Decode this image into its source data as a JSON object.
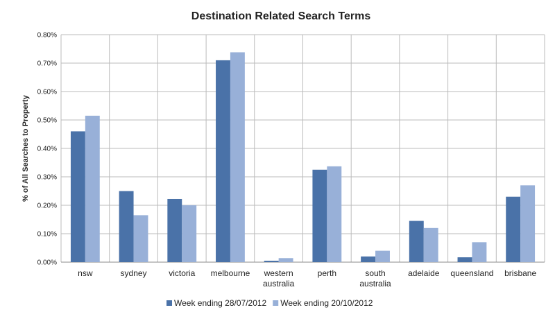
{
  "chart_data": {
    "type": "bar",
    "title": "Destination Related Search Terms",
    "y_label": "% of All Searches to Property",
    "categories": [
      "nsw",
      "sydney",
      "victoria",
      "melbourne",
      "western australia",
      "perth",
      "south australia",
      "adelaide",
      "queensland",
      "brisbane"
    ],
    "series": [
      {
        "name": "Week ending 28/07/2012",
        "color": "#4a72a8",
        "values": [
          0.46,
          0.25,
          0.222,
          0.71,
          0.005,
          0.325,
          0.02,
          0.145,
          0.017,
          0.23
        ]
      },
      {
        "name": "Week ending 20/10/2012",
        "color": "#98b0d8",
        "values": [
          0.515,
          0.165,
          0.2,
          0.738,
          0.014,
          0.337,
          0.04,
          0.12,
          0.07,
          0.27
        ]
      }
    ],
    "ylim": [
      0,
      0.8
    ],
    "yticks": [
      {
        "value": 0,
        "label": "0.00%"
      },
      {
        "value": 0.1,
        "label": "0.10%"
      },
      {
        "value": 0.2,
        "label": "0.20%"
      },
      {
        "value": 0.3,
        "label": "0.30%"
      },
      {
        "value": 0.4,
        "label": "0.40%"
      },
      {
        "value": 0.5,
        "label": "0.50%"
      },
      {
        "value": 0.6,
        "label": "0.60%"
      },
      {
        "value": 0.7,
        "label": "0.70%"
      },
      {
        "value": 0.8,
        "label": "0.80%"
      }
    ],
    "grid": true,
    "legend": "bottom"
  }
}
